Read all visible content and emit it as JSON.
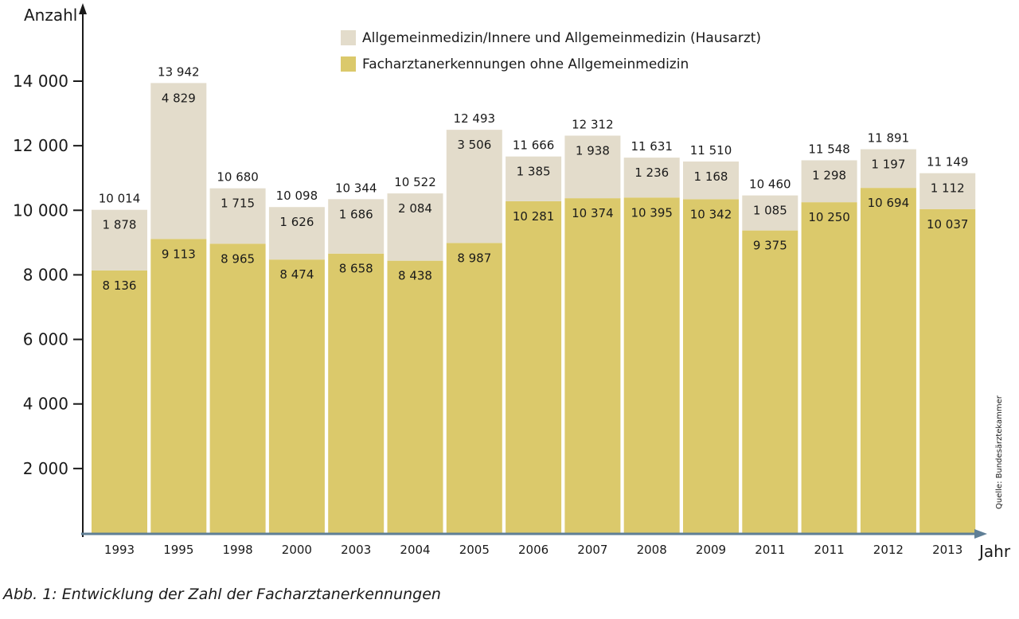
{
  "chart_data": {
    "type": "bar",
    "stacked": true,
    "ylabel": "Anzahl",
    "xlabel": "Jahr",
    "ylim": [
      0,
      14000
    ],
    "yticks": [
      2000,
      4000,
      6000,
      8000,
      10000,
      12000,
      14000
    ],
    "ytick_labels": [
      "2 000",
      "4 000",
      "6 000",
      "8 000",
      "10 000",
      "12 000",
      "14 000"
    ],
    "categories": [
      "1993",
      "1995",
      "1998",
      "2000",
      "2003",
      "2004",
      "2005",
      "2006",
      "2007",
      "2008",
      "2009",
      "2011",
      "2011",
      "2012",
      "2013"
    ],
    "series": [
      {
        "name": "Facharztanerkennungen ohne Allgemeinmedizin",
        "color": "#dbc96b",
        "values": [
          8136,
          9113,
          8965,
          8474,
          8658,
          8438,
          8987,
          10281,
          10374,
          10395,
          10342,
          9375,
          10250,
          10694,
          10037
        ],
        "labels": [
          "8 136",
          "9 113",
          "8 965",
          "8 474",
          "8 658",
          "8 438",
          "8 987",
          "10 281",
          "10 374",
          "10 395",
          "10 342",
          "9 375",
          "10 250",
          "10 694",
          "10 037"
        ]
      },
      {
        "name": "Allgemeinmedizin/Innere und Allgemeinmedizin (Hausarzt)",
        "color": "#e3dccb",
        "values": [
          1878,
          4829,
          1715,
          1626,
          1686,
          2084,
          3506,
          1385,
          1938,
          1236,
          1168,
          1085,
          1298,
          1197,
          1112
        ],
        "labels": [
          "1 878",
          "4 829",
          "1 715",
          "1 626",
          "1 686",
          "2 084",
          "3 506",
          "1 385",
          "1 938",
          "1 236",
          "1 168",
          "1 085",
          "1 298",
          "1 197",
          "1 112"
        ]
      }
    ],
    "totals": [
      10014,
      13942,
      10680,
      10098,
      10344,
      10522,
      12493,
      11666,
      12312,
      11631,
      11510,
      10460,
      11548,
      11891,
      11149
    ],
    "total_labels": [
      "10 014",
      "13 942",
      "10 680",
      "10 098",
      "10 344",
      "10 522",
      "12 493",
      "11 666",
      "12 312",
      "11 631",
      "11 510",
      "10 460",
      "11 548",
      "11 891",
      "11 149"
    ],
    "legend_position": "top-center",
    "grid": false,
    "source": "Quelle: Bundesärztekammer"
  },
  "caption": "Abb. 1: Entwicklung der Zahl der Facharztanerkennungen"
}
